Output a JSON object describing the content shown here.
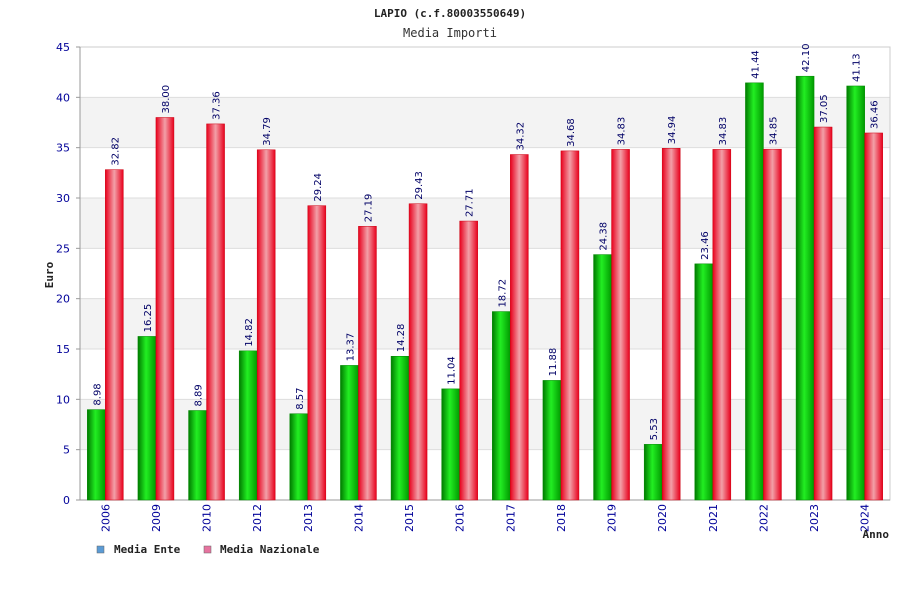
{
  "chart_data": {
    "type": "bar",
    "title": "LAPIO (c.f.80003550649)",
    "subtitle": "Media Importi",
    "xlabel": "Anno",
    "ylabel": "Euro",
    "ylim": [
      0,
      45
    ],
    "yticks": [
      0,
      5,
      10,
      15,
      20,
      25,
      30,
      35,
      40,
      45
    ],
    "grid": true,
    "legend_position": "bottom-left",
    "categories": [
      "2006",
      "2009",
      "2010",
      "2012",
      "2013",
      "2014",
      "2015",
      "2016",
      "2017",
      "2018",
      "2019",
      "2020",
      "2021",
      "2022",
      "2023",
      "2024"
    ],
    "series": [
      {
        "name": "Media Ente",
        "legend_color": "#5b9bd5",
        "color": "#00cc00",
        "values": [
          8.98,
          16.25,
          8.89,
          14.82,
          8.57,
          13.37,
          14.28,
          11.04,
          18.72,
          11.88,
          24.38,
          5.53,
          23.46,
          41.44,
          42.1,
          41.13
        ],
        "labels": [
          "8.98",
          "16.25",
          "8.89",
          "14.82",
          "8.57",
          "13.37",
          "14.28",
          "11.04",
          "18.72",
          "11.88",
          "24.38",
          "5.53",
          "23.46",
          "41.44",
          "42.10",
          "41.13"
        ]
      },
      {
        "name": "Media Nazionale",
        "legend_color": "#e6739f",
        "color": "#ee2233",
        "values": [
          32.82,
          38.0,
          37.36,
          34.79,
          29.24,
          27.19,
          29.43,
          27.71,
          34.32,
          34.68,
          34.83,
          34.94,
          34.83,
          34.85,
          37.05,
          36.46
        ],
        "labels": [
          "32.82",
          "38.00",
          "37.36",
          "34.79",
          "29.24",
          "27.19",
          "29.43",
          "27.71",
          "34.32",
          "34.68",
          "34.83",
          "34.94",
          "34.83",
          "34.85",
          "37.05",
          "36.46"
        ]
      }
    ]
  }
}
